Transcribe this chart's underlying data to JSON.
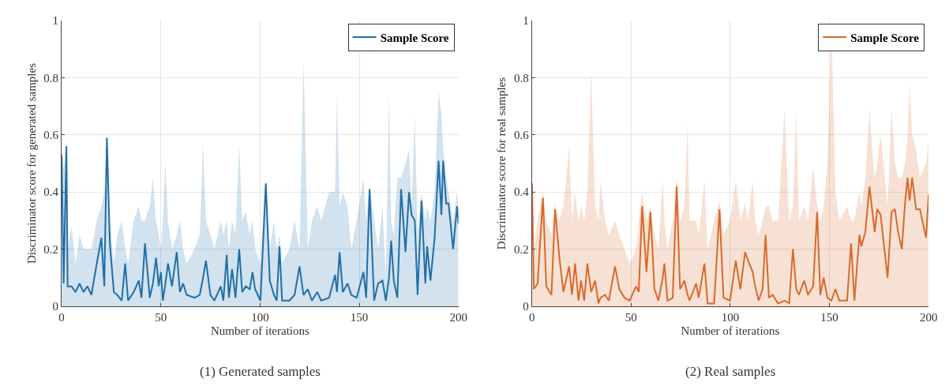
{
  "chart_data": [
    {
      "type": "line",
      "xlabel": "Number of iterations",
      "ylabel": "Discriminator score for generated samples",
      "annotations": [
        "(1) Generated samples"
      ],
      "xlim": [
        0,
        200
      ],
      "xticks": [
        0,
        50,
        100,
        150,
        200
      ],
      "ylim": [
        0,
        1
      ],
      "yticks": [
        0,
        0.2,
        0.4,
        0.6,
        0.8,
        1
      ],
      "grid": true,
      "legend": "top right",
      "series": [
        {
          "name": "Sample Score",
          "color": "#1f6fa8",
          "x": [
            0,
            1,
            2.4,
            3,
            5,
            7,
            9,
            11,
            13,
            15,
            17.7,
            20,
            21.5,
            22.8,
            24.3,
            26.3,
            28,
            30.3,
            32,
            33.5,
            36.3,
            38.9,
            40.2,
            42,
            44.4,
            46,
            47.6,
            48.9,
            50,
            51,
            52.3,
            53.6,
            55.6,
            58,
            59.6,
            61.2,
            63,
            67,
            69.6,
            71.3,
            72.7,
            75,
            77,
            80.2,
            81.5,
            83.2,
            84.3,
            85.9,
            87.6,
            89.5,
            91,
            92.8,
            94.8,
            96.2,
            97.5,
            100.2,
            102.9,
            104.9,
            107,
            108.4,
            109.8,
            111.1,
            114.8,
            117.4,
            119.9,
            121.9,
            124.1,
            126.1,
            128.8,
            130.8,
            134.8,
            137.8,
            138.8,
            140.1,
            141.7,
            144.1,
            146,
            148.7,
            152.1,
            153.5,
            155.2,
            157.5,
            159.5,
            161.7,
            163.4,
            165,
            166.1,
            167.4,
            169.2,
            171.1,
            173.3,
            175.1,
            176.4,
            178,
            179.4,
            181.4,
            183.3,
            184.2,
            185.9,
            188,
            190,
            191.4,
            192.3,
            193.8,
            195,
            197.3,
            199.3,
            200
          ],
          "values": [
            0.53,
            0.08,
            0.56,
            0.07,
            0.07,
            0.05,
            0.08,
            0.05,
            0.07,
            0.04,
            0.15,
            0.24,
            0.07,
            0.59,
            0.22,
            0.05,
            0.04,
            0.02,
            0.15,
            0.02,
            0.05,
            0.09,
            0.03,
            0.22,
            0.03,
            0.08,
            0.17,
            0.07,
            0.12,
            0.02,
            0.08,
            0.15,
            0.07,
            0.19,
            0.05,
            0.08,
            0.04,
            0.03,
            0.04,
            0.1,
            0.16,
            0.04,
            0.02,
            0.07,
            0.02,
            0.18,
            0.03,
            0.13,
            0.03,
            0.2,
            0.05,
            0.07,
            0.06,
            0.12,
            0.06,
            0.02,
            0.43,
            0.09,
            0.04,
            0.02,
            0.21,
            0.02,
            0.02,
            0.04,
            0.14,
            0.04,
            0.06,
            0.02,
            0.05,
            0.02,
            0.03,
            0.11,
            0.05,
            0.19,
            0.05,
            0.08,
            0.04,
            0.03,
            0.12,
            0.03,
            0.41,
            0.02,
            0.08,
            0.09,
            0.02,
            0.1,
            0.23,
            0.09,
            0.03,
            0.41,
            0.19,
            0.4,
            0.32,
            0.3,
            0.04,
            0.37,
            0.08,
            0.21,
            0.09,
            0.24,
            0.51,
            0.32,
            0.51,
            0.36,
            0.36,
            0.2,
            0.35,
            0.29
          ],
          "upper": [
            0.56,
            0.48,
            0.58,
            0.2,
            0.28,
            0.15,
            0.25,
            0.2,
            0.2,
            0.2,
            0.3,
            0.35,
            0.4,
            0.6,
            0.3,
            0.15,
            0.25,
            0.3,
            0.2,
            0.15,
            0.3,
            0.35,
            0.3,
            0.3,
            0.35,
            0.45,
            0.3,
            0.25,
            0.2,
            0.3,
            0.5,
            0.3,
            0.2,
            0.25,
            0.3,
            0.2,
            0.15,
            0.2,
            0.25,
            0.57,
            0.3,
            0.25,
            0.2,
            0.3,
            0.25,
            0.3,
            0.2,
            0.3,
            0.25,
            0.57,
            0.3,
            0.33,
            0.25,
            0.3,
            0.2,
            0.15,
            0.45,
            0.2,
            0.3,
            0.2,
            0.25,
            0.15,
            0.2,
            0.3,
            0.2,
            0.86,
            0.2,
            0.3,
            0.35,
            0.3,
            0.4,
            0.4,
            0.74,
            0.35,
            0.4,
            0.35,
            0.2,
            0.3,
            0.45,
            0.3,
            0.42,
            0.3,
            0.2,
            0.35,
            0.1,
            0.74,
            0.3,
            0.25,
            0.45,
            0.45,
            0.5,
            0.55,
            0.35,
            0.67,
            0.25,
            0.4,
            0.3,
            0.35,
            0.3,
            0.4,
            0.75,
            0.67,
            0.55,
            0.45,
            0.4,
            0.3,
            0.4,
            0.35
          ],
          "lower": [
            0,
            0,
            0,
            0,
            0,
            0,
            0,
            0,
            0,
            0,
            0,
            0,
            0,
            0,
            0,
            0,
            0,
            0,
            0,
            0,
            0,
            0,
            0,
            0,
            0,
            0,
            0,
            0,
            0,
            0,
            0,
            0,
            0,
            0,
            0,
            0,
            0,
            0,
            0,
            0,
            0,
            0,
            0,
            0,
            0,
            0,
            0,
            0,
            0,
            0,
            0,
            0,
            0,
            0,
            0,
            0,
            0,
            0,
            0,
            0,
            0,
            0,
            0,
            0,
            0,
            0,
            0,
            0,
            0,
            0,
            0,
            0,
            0,
            0,
            0,
            0,
            0,
            0,
            0,
            0,
            0,
            0,
            0,
            0,
            0,
            0,
            0,
            0,
            0,
            0,
            0,
            0,
            0,
            0,
            0,
            0,
            0,
            0,
            0,
            0,
            0,
            0,
            0,
            0,
            0,
            0,
            0,
            0
          ]
        }
      ]
    },
    {
      "type": "line",
      "xlabel": "Number of iterations",
      "ylabel": "Discriminator score for real samples",
      "annotations": [
        "(2) Real samples"
      ],
      "xlim": [
        0,
        200
      ],
      "xticks": [
        0,
        50,
        100,
        150,
        200
      ],
      "ylim": [
        0,
        1
      ],
      "yticks": [
        0,
        0.2,
        0.4,
        0.6,
        0.8,
        1
      ],
      "grid": true,
      "legend": "top right",
      "series": [
        {
          "name": "Sample Score",
          "color": "#d9692a",
          "x": [
            0.1,
            1,
            2.9,
            5.6,
            7.3,
            9.9,
            11.7,
            13.9,
            15.9,
            18.8,
            20.2,
            21.8,
            23.5,
            24.8,
            26.4,
            28,
            29.9,
            31.9,
            33.6,
            34.6,
            36.9,
            38.8,
            41.9,
            44.1,
            46.7,
            49.3,
            52.6,
            53.9,
            55.6,
            57.8,
            59.8,
            61.8,
            63.8,
            66,
            66.8,
            68.4,
            71,
            73,
            74.7,
            76.9,
            78.5,
            79.5,
            82.8,
            84.1,
            87,
            88.6,
            91.9,
            94.6,
            96.6,
            99.9,
            102.8,
            105.1,
            107.5,
            109,
            111.3,
            112.6,
            114.3,
            116.3,
            117.8,
            119.5,
            121.4,
            124.1,
            127.4,
            129.7,
            131.6,
            133.3,
            134.6,
            137.3,
            139.2,
            141.8,
            143.8,
            145.4,
            147.1,
            149,
            151,
            153,
            155,
            158.9,
            160.9,
            162.6,
            165.1,
            166.1,
            168.1,
            170.2,
            171.5,
            172.8,
            174.1,
            175.8,
            179.3,
            181.3,
            183,
            184.6,
            186.5,
            188.1,
            189.4,
            190.4,
            191.7,
            193.7,
            195.6,
            198.7,
            200
          ],
          "values": [
            0.43,
            0.06,
            0.08,
            0.38,
            0.07,
            0.04,
            0.34,
            0.17,
            0.05,
            0.14,
            0.04,
            0.15,
            0.02,
            0.09,
            0.02,
            0.15,
            0.05,
            0.09,
            0.01,
            0.03,
            0.04,
            0.02,
            0.14,
            0.06,
            0.03,
            0.02,
            0.07,
            0.05,
            0.35,
            0.12,
            0.33,
            0.06,
            0.02,
            0.1,
            0.15,
            0.02,
            0.03,
            0.42,
            0.06,
            0.09,
            0.04,
            0.02,
            0.08,
            0.03,
            0.15,
            0.01,
            0.01,
            0.34,
            0.03,
            0.02,
            0.16,
            0.06,
            0.19,
            0.16,
            0.12,
            0.07,
            0.02,
            0.06,
            0.25,
            0.03,
            0.04,
            0.01,
            0.02,
            0.01,
            0.2,
            0.06,
            0.04,
            0.09,
            0.04,
            0.07,
            0.33,
            0.04,
            0.1,
            0.03,
            0.02,
            0.06,
            0.02,
            0.02,
            0.22,
            0.02,
            0.25,
            0.21,
            0.26,
            0.42,
            0.34,
            0.26,
            0.34,
            0.32,
            0.1,
            0.33,
            0.34,
            0.26,
            0.2,
            0.36,
            0.45,
            0.37,
            0.45,
            0.34,
            0.34,
            0.24,
            0.39
          ],
          "upper": [
            0.45,
            0.2,
            0.3,
            0.4,
            0.3,
            0.25,
            0.36,
            0.3,
            0.35,
            0.56,
            0.3,
            0.4,
            0.3,
            0.35,
            0.3,
            0.4,
            0.83,
            0.35,
            0.3,
            0.44,
            0.3,
            0.25,
            0.3,
            0.25,
            0.2,
            0.15,
            0.2,
            0.3,
            0.4,
            0.3,
            0.35,
            0.25,
            0.2,
            0.44,
            0.3,
            0.2,
            0.3,
            0.45,
            0.3,
            0.35,
            0.64,
            0.3,
            0.3,
            0.25,
            0.44,
            0.2,
            0.3,
            0.37,
            0.25,
            0.3,
            0.44,
            0.3,
            0.36,
            0.3,
            0.44,
            0.3,
            0.25,
            0.3,
            0.35,
            0.35,
            0.3,
            0.3,
            0.69,
            0.3,
            0.35,
            0.69,
            0.3,
            0.35,
            0.3,
            0.49,
            0.35,
            0.3,
            0.35,
            0.5,
            1,
            0.4,
            0.3,
            0.35,
            0.3,
            0.3,
            0.4,
            0.35,
            0.45,
            0.69,
            0.55,
            0.45,
            0.5,
            0.6,
            0.35,
            0.69,
            0.5,
            0.45,
            0.45,
            0.5,
            0.6,
            0.78,
            0.6,
            0.55,
            0.45,
            0.5,
            0.58
          ],
          "lower": [
            0,
            0,
            0,
            0,
            0,
            0,
            0,
            0,
            0,
            0,
            0,
            0,
            0,
            0,
            0,
            0,
            0,
            0,
            0,
            0,
            0,
            0,
            0,
            0,
            0,
            0,
            0,
            0,
            0,
            0,
            0,
            0,
            0,
            0,
            0,
            0,
            0,
            0,
            0,
            0,
            0,
            0,
            0,
            0,
            0,
            0,
            0,
            0,
            0,
            0,
            0,
            0,
            0,
            0,
            0,
            0,
            0,
            0,
            0,
            0,
            0,
            0,
            0,
            0,
            0,
            0,
            0,
            0,
            0,
            0,
            0,
            0,
            0,
            0,
            0,
            0,
            0,
            0,
            0,
            0,
            0,
            0,
            0,
            0,
            0,
            0,
            0,
            0,
            0,
            0,
            0,
            0,
            0,
            0,
            0,
            0,
            0,
            0,
            0,
            0,
            0
          ]
        }
      ]
    }
  ]
}
